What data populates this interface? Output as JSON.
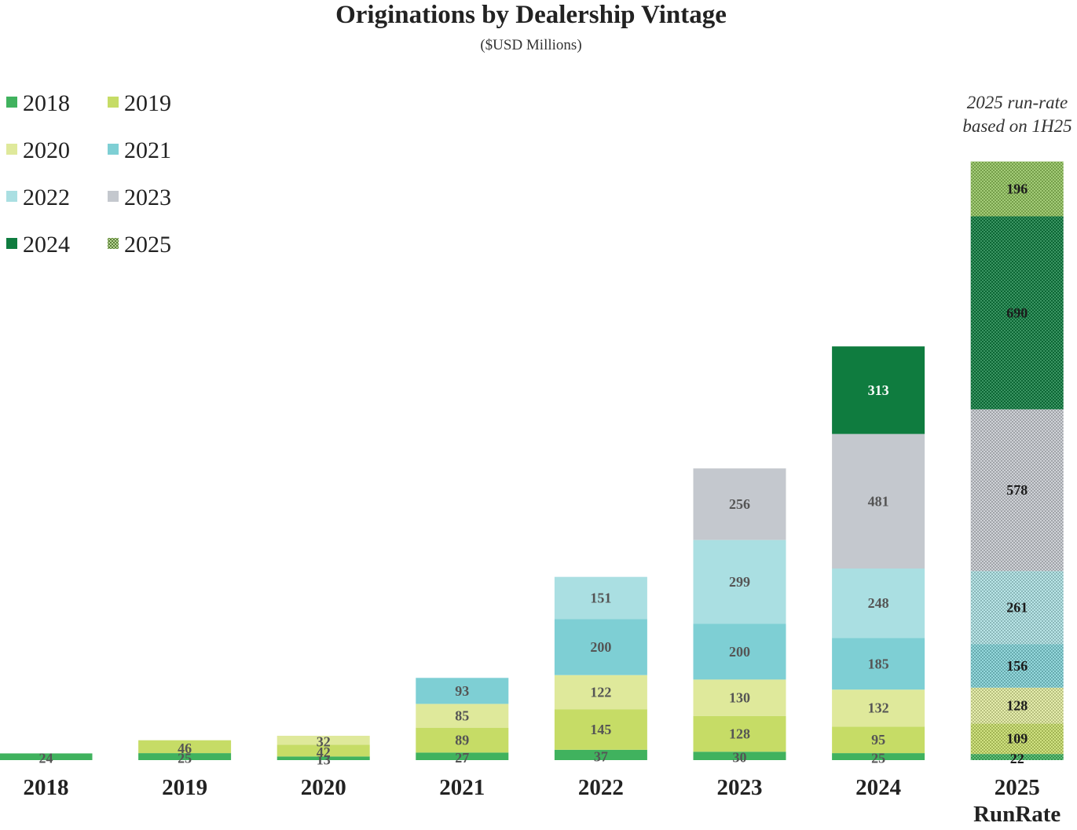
{
  "chart_data": {
    "type": "bar",
    "stacked": true,
    "title": "Originations by Dealership Vintage",
    "subtitle": "($USD Millions)",
    "annotation": [
      "2025 run-rate",
      "based on 1H25"
    ],
    "categories": [
      {
        "label": [
          "2018"
        ]
      },
      {
        "label": [
          "2019"
        ]
      },
      {
        "label": [
          "2020"
        ]
      },
      {
        "label": [
          "2021"
        ]
      },
      {
        "label": [
          "2022"
        ]
      },
      {
        "label": [
          "2023"
        ]
      },
      {
        "label": [
          "2024"
        ]
      },
      {
        "label": [
          "2025",
          "RunRate"
        ],
        "hatched": true
      }
    ],
    "series": [
      {
        "name": "2018",
        "color": "#40b25e",
        "values": [
          24,
          25,
          13,
          27,
          37,
          30,
          25,
          22
        ]
      },
      {
        "name": "2019",
        "color": "#c6dc66",
        "values": [
          null,
          46,
          42,
          89,
          145,
          128,
          95,
          109
        ]
      },
      {
        "name": "2020",
        "color": "#dfe99b",
        "values": [
          null,
          null,
          32,
          85,
          122,
          130,
          132,
          128
        ]
      },
      {
        "name": "2021",
        "color": "#7ecfd4",
        "values": [
          null,
          null,
          null,
          93,
          200,
          200,
          185,
          156
        ]
      },
      {
        "name": "2022",
        "color": "#aadfe2",
        "values": [
          null,
          null,
          null,
          null,
          151,
          299,
          248,
          261
        ]
      },
      {
        "name": "2023",
        "color": "#c4c8ce",
        "values": [
          null,
          null,
          null,
          null,
          null,
          256,
          481,
          578
        ]
      },
      {
        "name": "2024",
        "color": "#0f7c3f",
        "values": [
          null,
          null,
          null,
          null,
          null,
          null,
          313,
          690
        ]
      },
      {
        "name": "2025",
        "color": "#8fc15a",
        "pattern": "hatched",
        "values": [
          null,
          null,
          null,
          null,
          null,
          null,
          null,
          196
        ]
      }
    ],
    "ylim": [
      0,
      2170
    ],
    "legend": {
      "placement": "top-left",
      "columns": 2
    }
  }
}
